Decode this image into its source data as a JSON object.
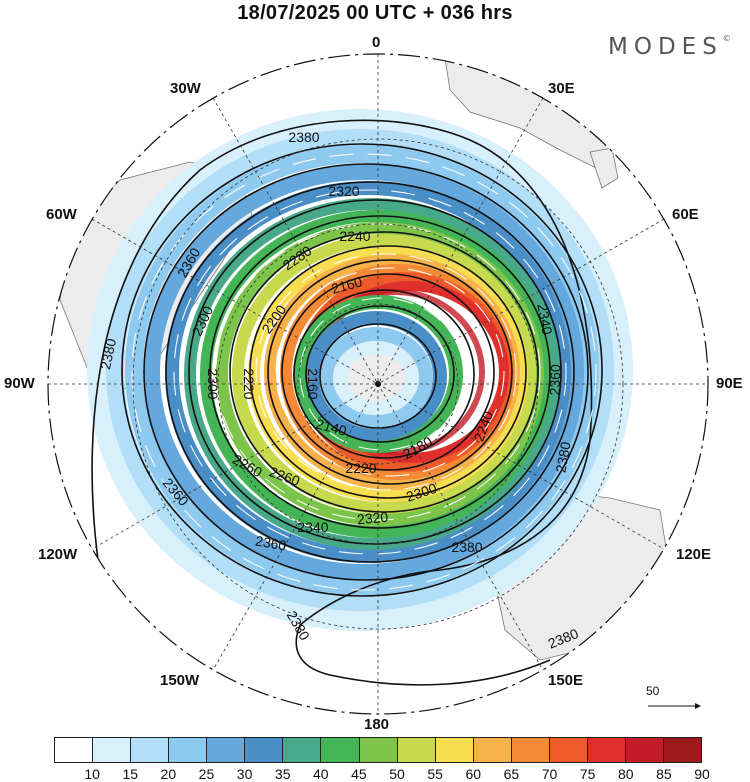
{
  "title": "18/07/2025  00 UTC  + 036 hrs",
  "brand": "MODES",
  "brand_mark": "©",
  "reference_vector_label": "50",
  "longitude_labels": {
    "top": "0",
    "bottom": "180",
    "w30": "30W",
    "e30": "30E",
    "w60": "60W",
    "e60": "60E",
    "w90": "90W",
    "e90": "90E",
    "w120": "120W",
    "e120": "120E",
    "w150": "150W",
    "e150": "150E"
  },
  "wind_speed_colorbar": {
    "ticks": [
      "10",
      "15",
      "20",
      "25",
      "30",
      "35",
      "40",
      "45",
      "50",
      "55",
      "60",
      "65",
      "70",
      "75",
      "80",
      "85",
      "90"
    ],
    "colors": [
      "#ffffff",
      "#d8f0fc",
      "#b2dff7",
      "#8ec9ef",
      "#64a8dd",
      "#4a8ec8",
      "#48a88a",
      "#44b557",
      "#7cc44a",
      "#c7da4d",
      "#f7de51",
      "#f7b24a",
      "#f48a35",
      "#ef5a2a",
      "#e0302c",
      "#c41c26",
      "#9c1a1c"
    ]
  },
  "contours": [
    {
      "label": "2380"
    },
    {
      "label": "2360"
    },
    {
      "label": "2340"
    },
    {
      "label": "2320"
    },
    {
      "label": "2300"
    },
    {
      "label": "2280"
    },
    {
      "label": "2260"
    },
    {
      "label": "2240"
    },
    {
      "label": "2220"
    },
    {
      "label": "2200"
    },
    {
      "label": "2180"
    },
    {
      "label": "2160"
    },
    {
      "label": "2140"
    }
  ],
  "colors": {
    "land": "#ececec",
    "coast": "#777777",
    "contour": "#111111",
    "grid": "#333333"
  }
}
